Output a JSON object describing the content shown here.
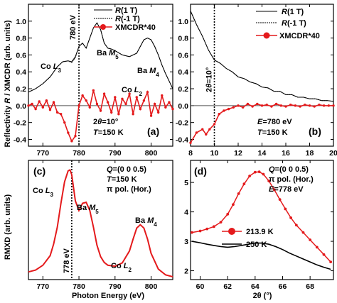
{
  "y_label_top": "Reflectivity R / XMCDR (arb. units)",
  "y_label_c": "RMXD (arb. units)",
  "x_label_c": "Photon Energy (eV)",
  "x_label_d": "2θ (°)",
  "chart_data": [
    {
      "type": "line",
      "panel": "(a)",
      "xlim": [
        766,
        806
      ],
      "ylim": [
        -0.48,
        1.2
      ],
      "xticks": [
        770,
        780,
        790,
        800
      ],
      "yticks": [
        -0.4,
        -0.2,
        0.0,
        0.2,
        0.4,
        0.6,
        0.8,
        1.0
      ],
      "ytick_labels": [
        "-0.4",
        "-0.2",
        "0.0",
        "0.2",
        "0.4",
        "0.6",
        "0.8",
        "1.0"
      ],
      "legend": {
        "entries": [
          "R(1 T)",
          "R(-1 T)",
          "XMCDR*40"
        ],
        "position": "top-right"
      },
      "annotations": [
        "Co L3",
        "Ba M5",
        "Ba M4",
        "Co L2",
        "780 eV",
        "2θ=10°",
        "T=150 K"
      ],
      "vline": 780,
      "series": [
        {
          "name": "R(1 T)",
          "color": "#000000",
          "x": [
            766,
            768,
            770,
            772,
            774,
            775.5,
            777,
            778,
            779,
            780,
            781,
            782,
            783,
            784,
            785,
            786,
            787,
            788,
            789,
            790,
            792,
            794,
            796,
            798,
            799,
            800,
            801,
            802,
            803,
            804,
            806
          ],
          "y": [
            0.16,
            0.2,
            0.26,
            0.34,
            0.46,
            0.52,
            0.53,
            0.52,
            0.58,
            0.7,
            0.74,
            0.68,
            0.8,
            0.92,
            0.98,
            0.9,
            0.74,
            0.68,
            0.67,
            0.65,
            0.6,
            0.58,
            0.62,
            0.78,
            0.8,
            0.78,
            0.7,
            0.6,
            0.48,
            0.38,
            0.2
          ]
        },
        {
          "name": "R(-1 T)",
          "color": "#000000",
          "x": [
            766,
            768,
            770,
            772,
            774,
            775.5,
            777,
            778,
            779,
            780,
            781,
            782,
            783,
            784,
            785,
            786,
            787,
            788,
            789,
            790,
            792,
            794,
            796,
            798,
            799,
            800,
            801,
            802,
            803,
            804,
            806
          ],
          "y": [
            0.16,
            0.2,
            0.26,
            0.34,
            0.46,
            0.52,
            0.53,
            0.51,
            0.57,
            0.7,
            0.74,
            0.68,
            0.8,
            0.92,
            0.98,
            0.9,
            0.74,
            0.68,
            0.67,
            0.65,
            0.6,
            0.58,
            0.62,
            0.78,
            0.8,
            0.78,
            0.7,
            0.6,
            0.48,
            0.38,
            0.2
          ]
        },
        {
          "name": "XMCDR*40",
          "color": "#e41a1c",
          "x": [
            766,
            767,
            768,
            769,
            770,
            771,
            772,
            773,
            774,
            775,
            776,
            777,
            778,
            779,
            780,
            781,
            782,
            783,
            784,
            785,
            786,
            787,
            788,
            789,
            790,
            791,
            792,
            793,
            794,
            795,
            796,
            797,
            798,
            799,
            800,
            801,
            802,
            803,
            804,
            805,
            806
          ],
          "y": [
            0.0,
            0.02,
            -0.04,
            0.05,
            -0.02,
            0.06,
            -0.05,
            0.04,
            -0.08,
            -0.1,
            -0.2,
            -0.32,
            -0.42,
            -0.36,
            0.0,
            0.12,
            0.06,
            -0.02,
            0.18,
            0.02,
            -0.06,
            0.14,
            0.04,
            -0.08,
            0.1,
            -0.1,
            0.08,
            0.02,
            0.14,
            -0.1,
            0.1,
            -0.04,
            0.06,
            0.16,
            -0.12,
            0.02,
            -0.08,
            0.12,
            -0.02,
            0.04,
            -0.04
          ]
        }
      ]
    },
    {
      "type": "line",
      "panel": "(b)",
      "xlim": [
        8,
        20
      ],
      "ylim": [
        -0.48,
        1.2
      ],
      "xticks": [
        8,
        10,
        12,
        14,
        16,
        18,
        20
      ],
      "yticks": [
        -0.4,
        -0.2,
        0.0,
        0.2,
        0.4,
        0.6,
        0.8,
        1.0
      ],
      "ytick_labels": [
        "-0.4",
        "-0.2",
        "0.0",
        "0.2",
        "0.4",
        "0.6",
        "0.8",
        "1.0"
      ],
      "legend": {
        "entries": [
          "R(1 T)",
          "R(-1 T)",
          "XMCDR*40"
        ],
        "position": "top-right"
      },
      "annotations": [
        "2θ=10°",
        "E=780 eV",
        "T=150 K"
      ],
      "vline": 10,
      "series": [
        {
          "name": "R(1 T)",
          "color": "#000000",
          "x": [
            8,
            8.5,
            9,
            9.5,
            10,
            10.5,
            11,
            11.5,
            12,
            12.5,
            13,
            13.5,
            14,
            14.5,
            15,
            15.5,
            16,
            16.5,
            17,
            17.5,
            18,
            18.5,
            19,
            19.5,
            20
          ],
          "y": [
            1.12,
            0.96,
            0.82,
            0.66,
            0.54,
            0.5,
            0.44,
            0.4,
            0.34,
            0.32,
            0.28,
            0.26,
            0.22,
            0.21,
            0.17,
            0.17,
            0.13,
            0.13,
            0.1,
            0.1,
            0.08,
            0.08,
            0.06,
            0.06,
            0.05
          ]
        },
        {
          "name": "R(-1 T)",
          "color": "#000000",
          "x": [
            8,
            8.5,
            9,
            9.5,
            10,
            10.5,
            11,
            11.5,
            12,
            12.5,
            13,
            13.5,
            14,
            14.5,
            15,
            15.5,
            16,
            16.5,
            17,
            17.5,
            18,
            18.5,
            19,
            19.5,
            20
          ],
          "y": [
            1.12,
            0.96,
            0.82,
            0.66,
            0.54,
            0.5,
            0.44,
            0.4,
            0.34,
            0.32,
            0.28,
            0.26,
            0.22,
            0.21,
            0.17,
            0.17,
            0.13,
            0.13,
            0.1,
            0.1,
            0.08,
            0.08,
            0.06,
            0.06,
            0.05
          ]
        },
        {
          "name": "XMCDR*40",
          "color": "#e41a1c",
          "x": [
            8,
            8.5,
            9,
            9.3,
            9.6,
            10,
            10.4,
            10.8,
            11.2,
            11.6,
            12,
            12.4,
            12.8,
            13.2,
            13.6,
            14,
            14.4,
            14.8,
            15.2,
            15.6,
            16,
            16.4,
            16.8,
            17.2,
            17.6,
            18,
            18.4,
            18.8,
            19.2,
            19.6,
            20
          ],
          "y": [
            -0.44,
            -0.32,
            -0.28,
            -0.34,
            -0.28,
            -0.22,
            -0.1,
            -0.06,
            -0.04,
            -0.02,
            0.0,
            -0.02,
            0.02,
            -0.01,
            0.02,
            0.0,
            0.01,
            -0.01,
            0.02,
            0.0,
            -0.01,
            0.01,
            0.0,
            -0.01,
            0.01,
            0.0,
            -0.01,
            0.01,
            0.0,
            0.0,
            0.0
          ]
        }
      ]
    },
    {
      "type": "line",
      "panel": "(c)",
      "xlim": [
        766,
        806
      ],
      "ylim": [
        0,
        2.5
      ],
      "xticks": [
        770,
        780,
        790,
        800
      ],
      "yticks": [],
      "annotations": [
        "Q=(0 0 0.5)",
        "T=150 K",
        "π pol. (Hor.)",
        "Co L3",
        "Ba M5",
        "Ba M4",
        "Co L2",
        "778 eV"
      ],
      "vline": 778,
      "series": [
        {
          "name": "",
          "color": "#e41a1c",
          "x": [
            766,
            768,
            770,
            772,
            773,
            774,
            775,
            776,
            777,
            777.5,
            778,
            779,
            780,
            781,
            782,
            783,
            784,
            785,
            786,
            787,
            788,
            790,
            792,
            794,
            795,
            796,
            797,
            798,
            799,
            800,
            802,
            804,
            806
          ],
          "y": [
            0.16,
            0.2,
            0.3,
            0.5,
            0.75,
            1.1,
            1.6,
            2.05,
            2.28,
            2.3,
            2.2,
            1.65,
            1.45,
            1.6,
            1.62,
            1.45,
            1.1,
            0.72,
            0.48,
            0.36,
            0.3,
            0.28,
            0.35,
            0.6,
            0.85,
            1.08,
            1.15,
            1.08,
            0.85,
            0.55,
            0.22,
            0.1,
            0.06
          ]
        }
      ]
    },
    {
      "type": "line",
      "panel": "(d)",
      "xlim": [
        59.3,
        69.7
      ],
      "ylim": [
        1.7,
        5.75
      ],
      "xticks": [
        60,
        62,
        64,
        66,
        68
      ],
      "yticks": [
        2,
        3,
        4,
        5
      ],
      "ytick_labels": [
        "2",
        "3",
        "4",
        "5"
      ],
      "legend": {
        "entries": [
          "213.9 K",
          "250 K"
        ],
        "position": "center-left"
      },
      "annotations": [
        "Q=(0 0 0.5)",
        "π pol. (Hor.)",
        "E=778 eV"
      ],
      "series": [
        {
          "name": "213.9 K",
          "color": "#e41a1c",
          "x": [
            59.4,
            60,
            60.5,
            61,
            61.5,
            62,
            62.4,
            62.8,
            63.2,
            63.6,
            64,
            64.3,
            64.6,
            65,
            65.4,
            65.8,
            66.2,
            66.6,
            67,
            67.5,
            68,
            68.5,
            69,
            69.5
          ],
          "y": [
            3.3,
            3.35,
            3.42,
            3.5,
            3.65,
            3.92,
            4.25,
            4.62,
            4.95,
            5.22,
            5.35,
            5.36,
            5.28,
            5.05,
            4.75,
            4.42,
            4.1,
            3.8,
            3.55,
            3.3,
            3.05,
            2.8,
            2.55,
            2.3
          ]
        },
        {
          "name": "250 K",
          "color": "#000000",
          "x": [
            59.4,
            60,
            60.5,
            61,
            61.5,
            62,
            62.5,
            63,
            63.5,
            64,
            64.5,
            65,
            65.5,
            66,
            66.5,
            67,
            67.5,
            68,
            68.5,
            69,
            69.5
          ],
          "y": [
            3.0,
            2.95,
            2.9,
            2.86,
            2.82,
            2.8,
            2.82,
            2.86,
            2.9,
            2.94,
            2.94,
            2.9,
            2.82,
            2.72,
            2.6,
            2.5,
            2.4,
            2.3,
            2.2,
            2.12,
            2.05
          ]
        }
      ]
    }
  ]
}
